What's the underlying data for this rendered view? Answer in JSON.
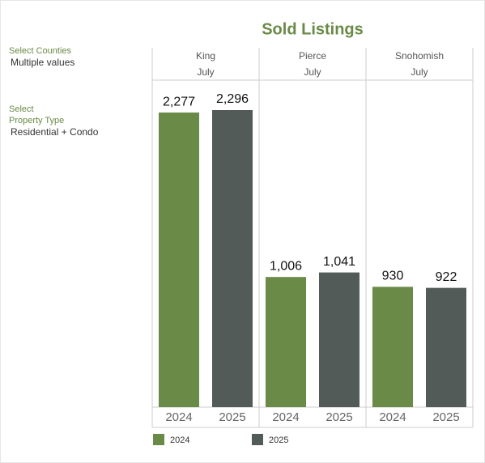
{
  "filters": [
    {
      "label": [
        "Select Counties"
      ],
      "value": "Multiple values"
    },
    {
      "label": [
        "Select",
        "Property Type"
      ],
      "value": "Residential + Condo"
    }
  ],
  "chart_data": {
    "type": "bar",
    "title": "Sold Listings",
    "categories": [
      "King",
      "Pierce",
      "Snohomish"
    ],
    "period": "July",
    "series": [
      {
        "name": "2024",
        "color": "#6a8a47",
        "values": [
          2277,
          1006,
          930
        ],
        "value_labels": [
          "2,277",
          "1,006",
          "930"
        ]
      },
      {
        "name": "2025",
        "color": "#535b59",
        "values": [
          2296,
          1041,
          922
        ],
        "value_labels": [
          "2,296",
          "1,041",
          "922"
        ]
      }
    ]
  }
}
